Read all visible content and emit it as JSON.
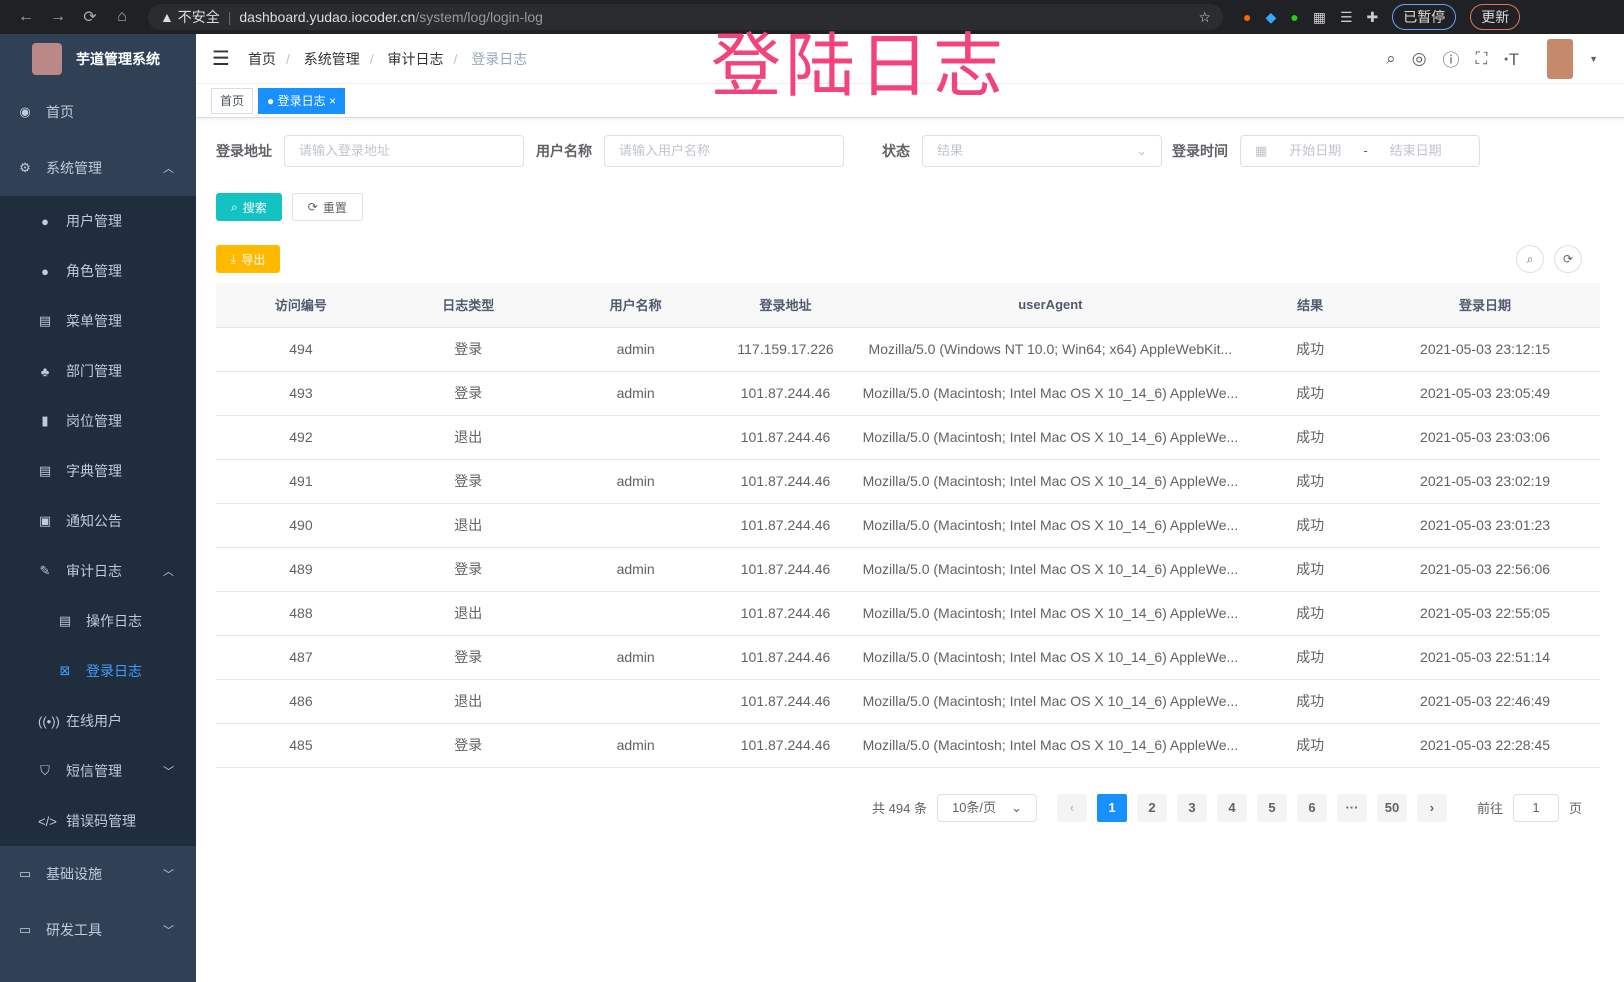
{
  "browser": {
    "back": "←",
    "forward": "→",
    "reload": "⟳",
    "home": "⌂",
    "security": "▲ 不安全",
    "host": "dashboard.yudao.iocoder.cn",
    "path": "/system/log/login-log",
    "paused": "已暂停",
    "update": "更新"
  },
  "overlay_title": "登陆日志",
  "sidebar": {
    "title": "芋道管理系统",
    "items": [
      {
        "label": "首页",
        "icon": "dashboard-icon"
      },
      {
        "label": "系统管理",
        "icon": "gear-icon"
      },
      {
        "label": "用户管理",
        "icon": "user-icon"
      },
      {
        "label": "角色管理",
        "icon": "role-icon"
      },
      {
        "label": "菜单管理",
        "icon": "menu-icon"
      },
      {
        "label": "部门管理",
        "icon": "tree-icon"
      },
      {
        "label": "岗位管理",
        "icon": "post-icon"
      },
      {
        "label": "字典管理",
        "icon": "dict-icon"
      },
      {
        "label": "通知公告",
        "icon": "message-icon"
      },
      {
        "label": "审计日志",
        "icon": "log-icon"
      },
      {
        "label": "操作日志",
        "icon": "form-icon"
      },
      {
        "label": "登录日志",
        "icon": "logininfor-icon"
      },
      {
        "label": "在线用户",
        "icon": "online-icon"
      },
      {
        "label": "短信管理",
        "icon": "shield-icon"
      },
      {
        "label": "错误码管理",
        "icon": "code-icon"
      },
      {
        "label": "基础设施",
        "icon": "monitor-icon"
      },
      {
        "label": "研发工具",
        "icon": "tool-icon"
      }
    ]
  },
  "breadcrumb": [
    "首页",
    "系统管理",
    "审计日志",
    "登录日志"
  ],
  "tags": {
    "home": "首页",
    "current": "登录日志"
  },
  "filters": {
    "ip_label": "登录地址",
    "ip_placeholder": "请输入登录地址",
    "user_label": "用户名称",
    "user_placeholder": "请输入用户名称",
    "status_label": "状态",
    "status_placeholder": "结果",
    "time_label": "登录时间",
    "start_placeholder": "开始日期",
    "end_placeholder": "结束日期",
    "range_sep": "-"
  },
  "buttons": {
    "search": "搜索",
    "reset": "重置",
    "export": "导出"
  },
  "colors": {
    "primary": "#1890ff",
    "search": "#13c2c2",
    "export": "#ffba00",
    "sidebar": "#304156"
  },
  "table": {
    "headers": [
      "访问编号",
      "日志类型",
      "用户名称",
      "登录地址",
      "userAgent",
      "结果",
      "登录日期"
    ],
    "rows": [
      [
        "494",
        "登录",
        "admin",
        "117.159.17.226",
        "Mozilla/5.0 (Windows NT 10.0; Win64; x64) AppleWebKit...",
        "成功",
        "2021-05-03 23:12:15"
      ],
      [
        "493",
        "登录",
        "admin",
        "101.87.244.46",
        "Mozilla/5.0 (Macintosh; Intel Mac OS X 10_14_6) AppleWe...",
        "成功",
        "2021-05-03 23:05:49"
      ],
      [
        "492",
        "退出",
        "",
        "101.87.244.46",
        "Mozilla/5.0 (Macintosh; Intel Mac OS X 10_14_6) AppleWe...",
        "成功",
        "2021-05-03 23:03:06"
      ],
      [
        "491",
        "登录",
        "admin",
        "101.87.244.46",
        "Mozilla/5.0 (Macintosh; Intel Mac OS X 10_14_6) AppleWe...",
        "成功",
        "2021-05-03 23:02:19"
      ],
      [
        "490",
        "退出",
        "",
        "101.87.244.46",
        "Mozilla/5.0 (Macintosh; Intel Mac OS X 10_14_6) AppleWe...",
        "成功",
        "2021-05-03 23:01:23"
      ],
      [
        "489",
        "登录",
        "admin",
        "101.87.244.46",
        "Mozilla/5.0 (Macintosh; Intel Mac OS X 10_14_6) AppleWe...",
        "成功",
        "2021-05-03 22:56:06"
      ],
      [
        "488",
        "退出",
        "",
        "101.87.244.46",
        "Mozilla/5.0 (Macintosh; Intel Mac OS X 10_14_6) AppleWe...",
        "成功",
        "2021-05-03 22:55:05"
      ],
      [
        "487",
        "登录",
        "admin",
        "101.87.244.46",
        "Mozilla/5.0 (Macintosh; Intel Mac OS X 10_14_6) AppleWe...",
        "成功",
        "2021-05-03 22:51:14"
      ],
      [
        "486",
        "退出",
        "",
        "101.87.244.46",
        "Mozilla/5.0 (Macintosh; Intel Mac OS X 10_14_6) AppleWe...",
        "成功",
        "2021-05-03 22:46:49"
      ],
      [
        "485",
        "登录",
        "admin",
        "101.87.244.46",
        "Mozilla/5.0 (Macintosh; Intel Mac OS X 10_14_6) AppleWe...",
        "成功",
        "2021-05-03 22:28:45"
      ]
    ]
  },
  "pagination": {
    "total": "共 494 条",
    "page_size": "10条/页",
    "pages": [
      "1",
      "2",
      "3",
      "4",
      "5",
      "6",
      "···",
      "50"
    ],
    "current": "1",
    "goto_prefix": "前往",
    "goto_value": "1",
    "goto_suffix": "页",
    "prev": "‹",
    "next": "›"
  }
}
